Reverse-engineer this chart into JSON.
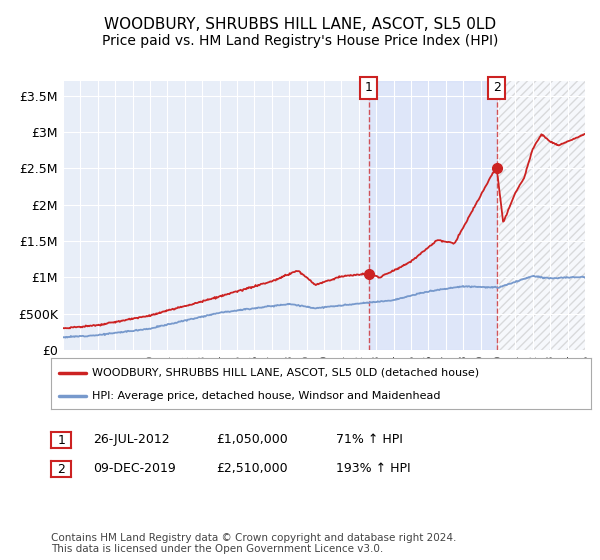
{
  "title": "WOODBURY, SHRUBBS HILL LANE, ASCOT, SL5 0LD",
  "subtitle": "Price paid vs. HM Land Registry's House Price Index (HPI)",
  "title_fontsize": 11,
  "subtitle_fontsize": 10,
  "ylabel_ticks": [
    "£0",
    "£500K",
    "£1M",
    "£1.5M",
    "£2M",
    "£2.5M",
    "£3M",
    "£3.5M"
  ],
  "ytick_values": [
    0,
    500000,
    1000000,
    1500000,
    2000000,
    2500000,
    3000000,
    3500000
  ],
  "ylim": [
    0,
    3700000
  ],
  "xlim_start": 1995,
  "xlim_end": 2025,
  "fig_bg_color": "#ffffff",
  "plot_bg_color": "#e8eef8",
  "grid_color": "#ffffff",
  "hpi_line_color": "#7799cc",
  "price_line_color": "#cc2222",
  "sale1_x": 2012.57,
  "sale1_y": 1050000,
  "sale2_x": 2019.92,
  "sale2_y": 2510000,
  "legend1_text": "WOODBURY, SHRUBBS HILL LANE, ASCOT, SL5 0LD (detached house)",
  "legend2_text": "HPI: Average price, detached house, Windsor and Maidenhead",
  "table_row1": [
    "1",
    "26-JUL-2012",
    "£1,050,000",
    "71% ↑ HPI"
  ],
  "table_row2": [
    "2",
    "09-DEC-2019",
    "£2,510,000",
    "193% ↑ HPI"
  ],
  "footer": "Contains HM Land Registry data © Crown copyright and database right 2024.\nThis data is licensed under the Open Government Licence v3.0."
}
